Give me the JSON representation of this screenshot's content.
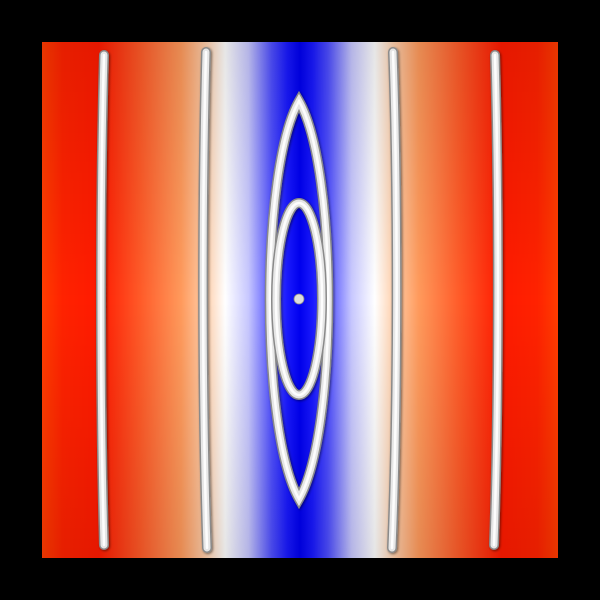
{
  "scene": {
    "background_color": "#000000",
    "colormap": {
      "low_color": "#0000ff",
      "mid_color": "#ffffff",
      "high_color": "#ff0000",
      "peach_color": "#ffc8a0",
      "orange_color": "#ff7f3c"
    },
    "contour_color": "#e6e6e6",
    "contour_shadow_color": "#8a8a8a",
    "center_marker_color": "#dddddd",
    "field_profile_stops": [
      {
        "offset": 0.0,
        "color": "#ff3c00"
      },
      {
        "offset": 0.04,
        "color": "#ff2200"
      },
      {
        "offset": 0.11,
        "color": "#ff1a00"
      },
      {
        "offset": 0.19,
        "color": "#ff5a28"
      },
      {
        "offset": 0.27,
        "color": "#ff9a5c"
      },
      {
        "offset": 0.32,
        "color": "#ffd2b0"
      },
      {
        "offset": 0.355,
        "color": "#ffffff"
      },
      {
        "offset": 0.4,
        "color": "#c8c8ff"
      },
      {
        "offset": 0.445,
        "color": "#5050ff"
      },
      {
        "offset": 0.475,
        "color": "#1a1aff"
      },
      {
        "offset": 0.5,
        "color": "#0000f0"
      },
      {
        "offset": 0.525,
        "color": "#1a1aff"
      },
      {
        "offset": 0.555,
        "color": "#5050ff"
      },
      {
        "offset": 0.6,
        "color": "#c8c8ff"
      },
      {
        "offset": 0.645,
        "color": "#ffffff"
      },
      {
        "offset": 0.68,
        "color": "#ffd2b0"
      },
      {
        "offset": 0.73,
        "color": "#ff9a5c"
      },
      {
        "offset": 0.81,
        "color": "#ff5a28"
      },
      {
        "offset": 0.89,
        "color": "#ff1a00"
      },
      {
        "offset": 0.96,
        "color": "#ff2200"
      },
      {
        "offset": 1.0,
        "color": "#ff3c00"
      }
    ],
    "contour_count": 6,
    "center_marker_count": 1
  }
}
